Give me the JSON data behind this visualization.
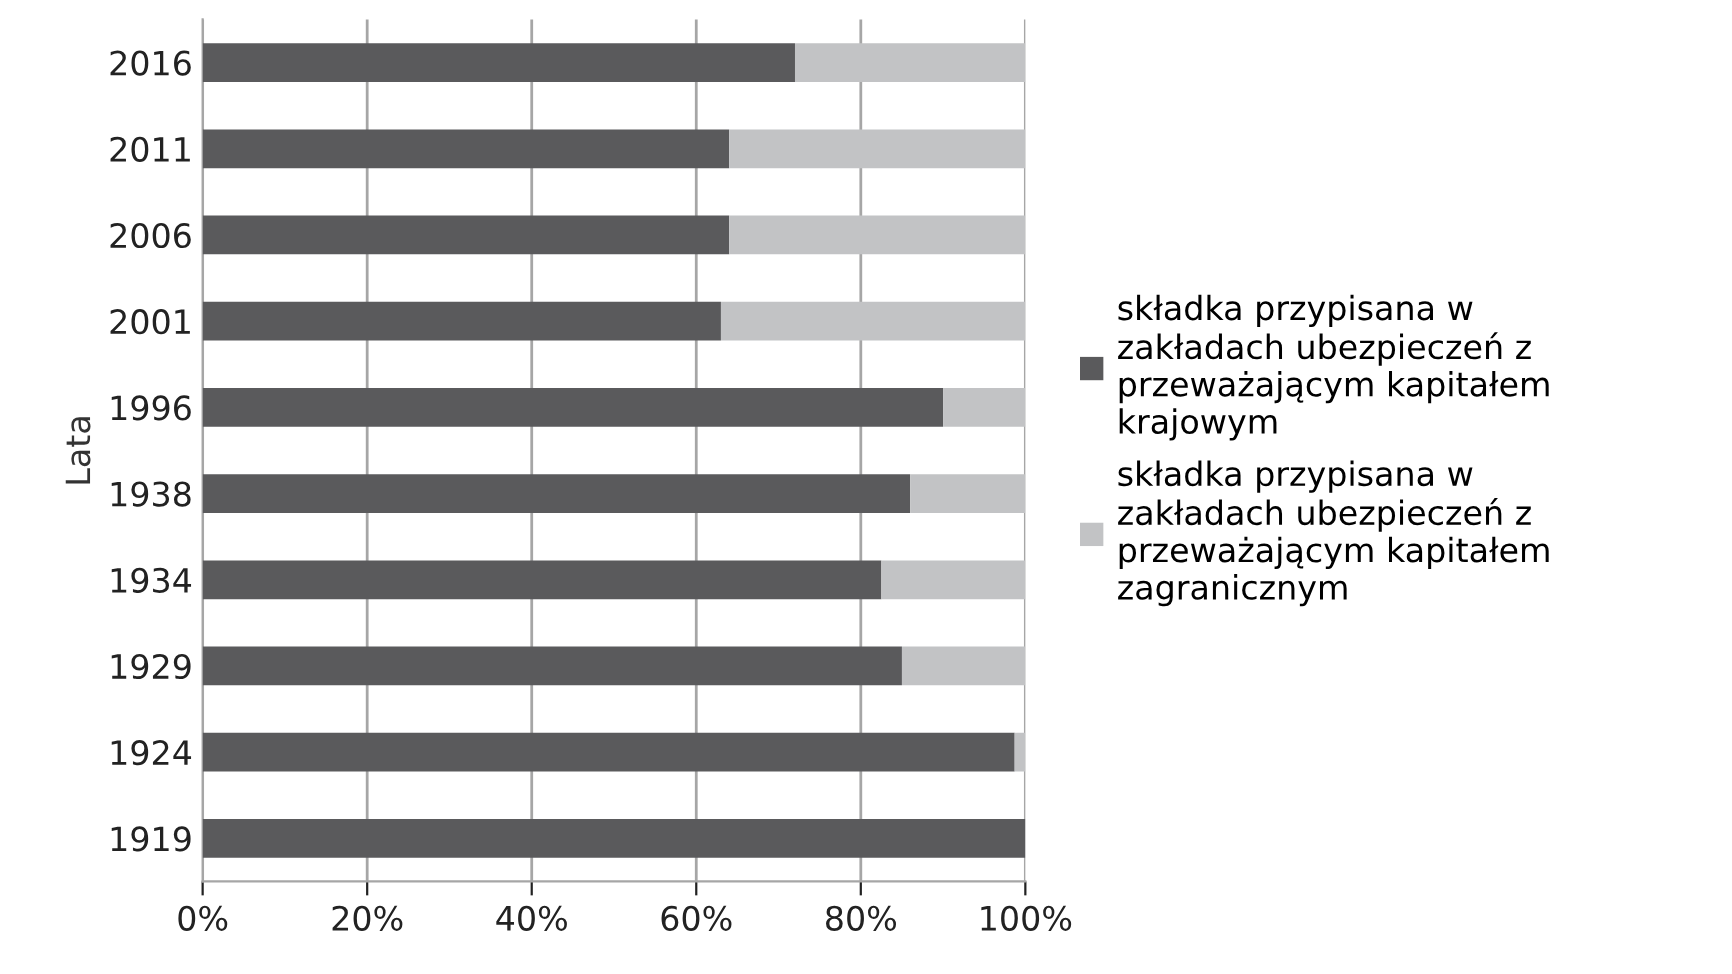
{
  "chart_data": {
    "type": "bar",
    "orientation": "horizontal",
    "stacked": true,
    "ylabel": "Lata",
    "categories": [
      "2016",
      "2011",
      "2006",
      "2001",
      "1996",
      "1938",
      "1934",
      "1929",
      "1924",
      "1919"
    ],
    "series": [
      {
        "name": "składka przypisana w zakładach ubezpieczeń z przeważającym kapitałem krajowym",
        "color": "#5a5a5c",
        "values": [
          72,
          64,
          64,
          63,
          90,
          86,
          82.5,
          85,
          98.7,
          100
        ]
      },
      {
        "name": "składka przypisana w zakładach ubezpieczeń z przeważającym kapitałem zagranicznym",
        "color": "#c2c3c5",
        "values": [
          28,
          36,
          36,
          37,
          10,
          14,
          17.5,
          15,
          1.3,
          0
        ]
      }
    ],
    "xlim": [
      0,
      100
    ],
    "xticks": [
      {
        "value": 0,
        "label": "0%"
      },
      {
        "value": 20,
        "label": "20%"
      },
      {
        "value": 40,
        "label": "40%"
      },
      {
        "value": 60,
        "label": "60%"
      },
      {
        "value": 80,
        "label": "80%"
      },
      {
        "value": 100,
        "label": "100%"
      }
    ],
    "grid": "x",
    "legend": "right"
  }
}
